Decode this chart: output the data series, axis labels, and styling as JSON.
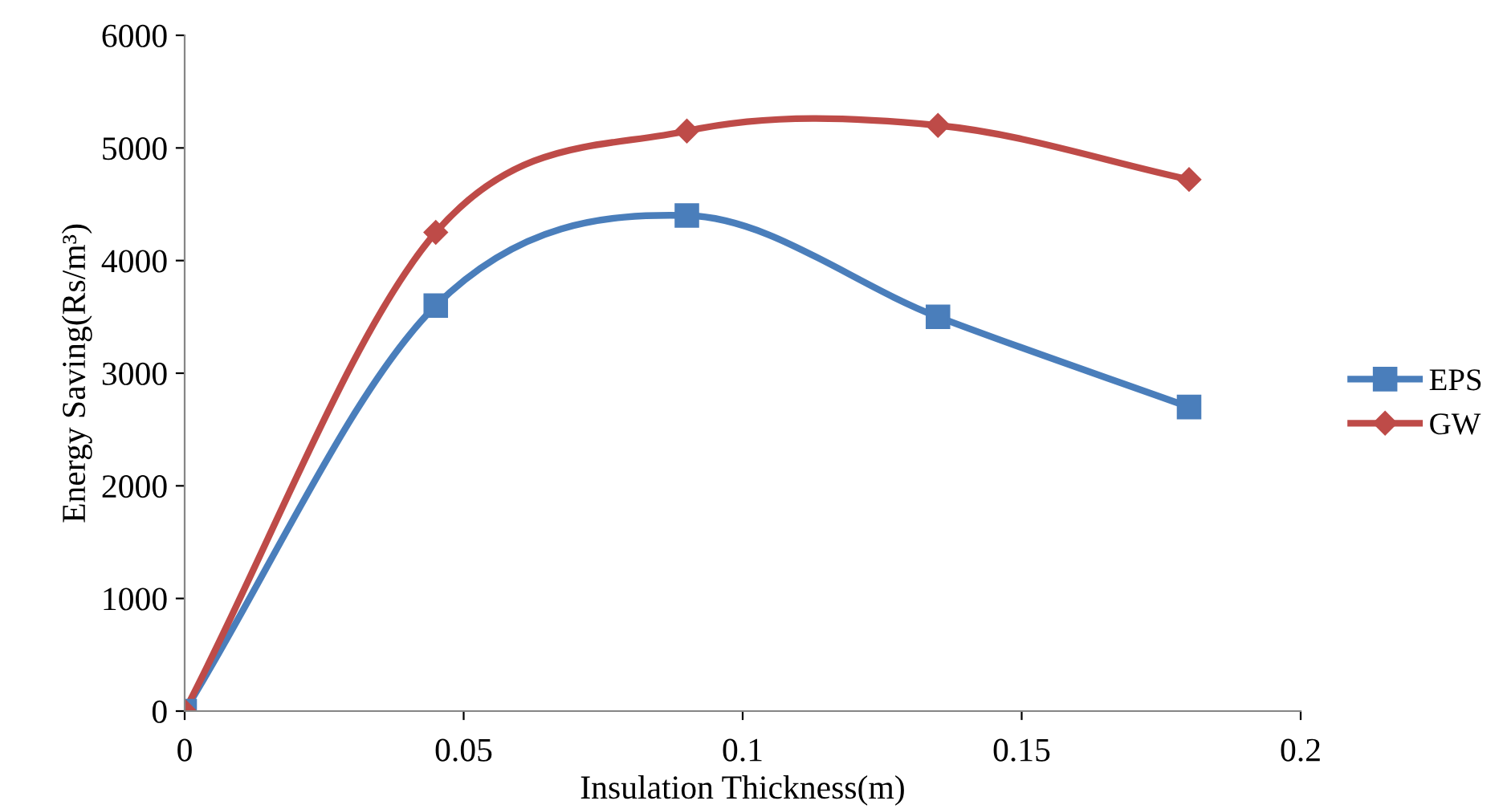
{
  "chart_data": {
    "type": "line",
    "xlabel": "Insulation Thickness(m)",
    "ylabel": "Energy Saving(Rs/m³)",
    "x": [
      0,
      0.045,
      0.09,
      0.135,
      0.18
    ],
    "series": [
      {
        "name": "EPS",
        "color": "#4a7ebb",
        "values": [
          0,
          3600,
          4400,
          3500,
          2700
        ],
        "marker": "square"
      },
      {
        "name": "GW",
        "color": "#be4b48",
        "values": [
          0,
          4250,
          5150,
          5200,
          4720
        ],
        "marker": "diamond"
      }
    ],
    "xlim": [
      0,
      0.2
    ],
    "xticks": [
      0,
      0.05,
      {
        "value": 0.1,
        "label": "0.1"
      },
      0.15,
      {
        "value": 0.2,
        "label": "0.2"
      }
    ],
    "ylim": [
      0,
      6000
    ],
    "yticks": [
      0,
      1000,
      2000,
      3000,
      4000,
      5000,
      6000
    ],
    "grid": false,
    "legend": "right",
    "line_style": "solid"
  }
}
